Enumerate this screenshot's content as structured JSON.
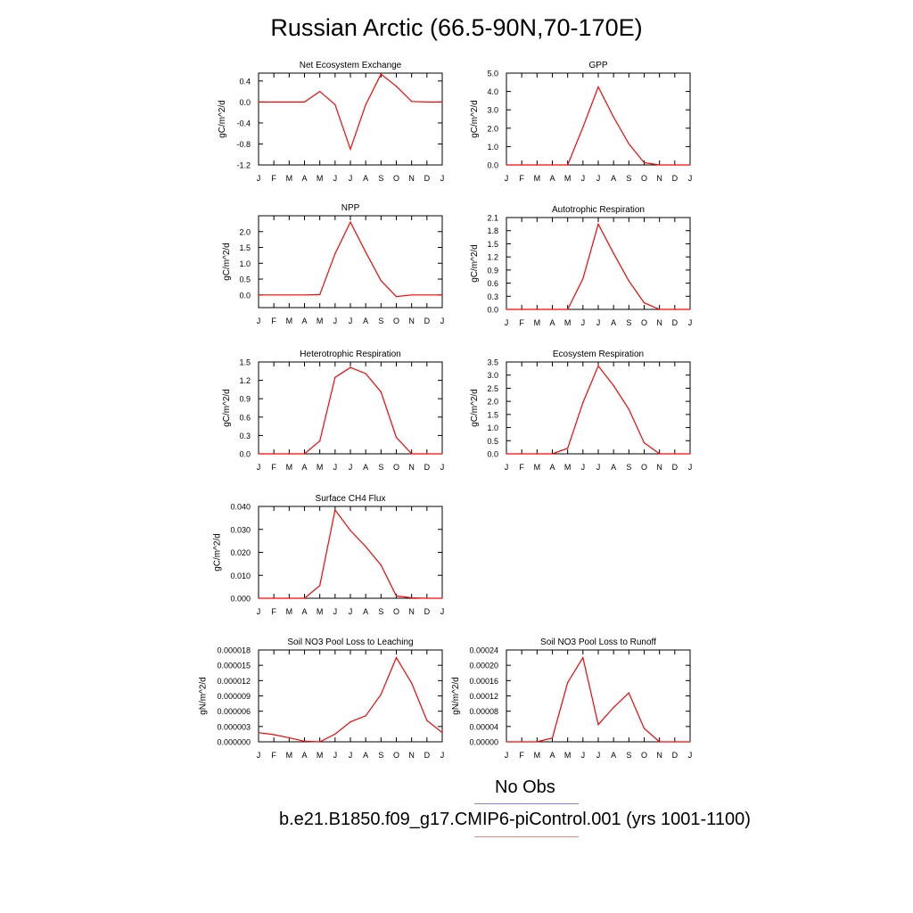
{
  "page_title": "Russian Arctic (66.5-90N,70-170E)",
  "months": [
    "J",
    "F",
    "M",
    "A",
    "M",
    "J",
    "J",
    "A",
    "S",
    "O",
    "N",
    "D",
    "J"
  ],
  "series_color": "#ff0000",
  "legend": {
    "obs_label": "No Obs",
    "obs_color": "#8080ff",
    "model_label": "b.e21.B1850.f09_g17.CMIP6-piControl.001 (yrs 1001-1100)",
    "model_color": "#ff8080"
  },
  "chart_data": [
    {
      "type": "line",
      "title": "Net Ecosystem Exchange",
      "ylabel": "gC/m^2/d",
      "ylim": [
        -1.2,
        0.55
      ],
      "yticks": [
        "0.4",
        "0.0",
        "-0.4",
        "-0.8",
        "-1.2"
      ],
      "ytick_values": [
        0.4,
        0.0,
        -0.4,
        -0.8,
        -1.2
      ],
      "values": [
        0.0,
        0.0,
        0.0,
        0.0,
        0.2,
        -0.05,
        -0.9,
        -0.05,
        0.53,
        0.3,
        0.01,
        0.0,
        0.0
      ]
    },
    {
      "type": "line",
      "title": "GPP",
      "ylabel": "gC/m^2/d",
      "ylim": [
        0,
        5
      ],
      "yticks": [
        "5.0",
        "4.0",
        "3.0",
        "2.0",
        "1.0",
        "0.0"
      ],
      "ytick_values": [
        5,
        4,
        3,
        2,
        1,
        0
      ],
      "values": [
        0,
        0,
        0,
        0,
        0,
        2.05,
        4.25,
        2.6,
        1.15,
        0.12,
        0,
        0,
        0
      ]
    },
    {
      "type": "line",
      "title": "NPP",
      "ylabel": "gC/m^2/d",
      "ylim": [
        -0.4,
        2.5
      ],
      "yticks": [
        "2.0",
        "1.5",
        "1.0",
        "0.5",
        "0.0"
      ],
      "ytick_values": [
        2.0,
        1.5,
        1.0,
        0.5,
        0.0
      ],
      "values": [
        0,
        0,
        0,
        0,
        0.01,
        1.3,
        2.3,
        1.35,
        0.45,
        -0.05,
        0,
        0,
        0
      ]
    },
    {
      "type": "line",
      "title": "Autotrophic Respiration",
      "ylabel": "gC/m^2/d",
      "ylim": [
        0,
        2.1
      ],
      "yticks": [
        "2.1",
        "1.8",
        "1.5",
        "1.2",
        "0.9",
        "0.6",
        "0.3",
        "0.0"
      ],
      "ytick_values": [
        2.1,
        1.8,
        1.5,
        1.2,
        0.9,
        0.6,
        0.3,
        0.0
      ],
      "values": [
        0,
        0,
        0,
        0,
        0,
        0.7,
        1.95,
        1.28,
        0.65,
        0.15,
        0,
        0,
        0
      ]
    },
    {
      "type": "line",
      "title": "Heterotrophic Respiration",
      "ylabel": "gC/m^2/d",
      "ylim": [
        0,
        1.5
      ],
      "yticks": [
        "1.5",
        "1.2",
        "0.9",
        "0.6",
        "0.3",
        "0.0"
      ],
      "ytick_values": [
        1.5,
        1.2,
        0.9,
        0.6,
        0.3,
        0.0
      ],
      "values": [
        0,
        0,
        0,
        0,
        0.21,
        1.25,
        1.41,
        1.31,
        1.01,
        0.27,
        0,
        0,
        0
      ]
    },
    {
      "type": "line",
      "title": "Ecosystem Respiration",
      "ylabel": "gC/m^2/d",
      "ylim": [
        0,
        3.5
      ],
      "yticks": [
        "3.5",
        "3.0",
        "2.5",
        "2.0",
        "1.5",
        "1.0",
        "0.5",
        "0.0"
      ],
      "ytick_values": [
        3.5,
        3.0,
        2.5,
        2.0,
        1.5,
        1.0,
        0.5,
        0.0
      ],
      "values": [
        0,
        0,
        0,
        0,
        0.21,
        1.95,
        3.35,
        2.6,
        1.7,
        0.42,
        0,
        0,
        0
      ]
    },
    {
      "type": "line",
      "title": "Surface CH4 Flux",
      "ylabel": "gC/m^2/d",
      "ylim": [
        0,
        0.04
      ],
      "yticks": [
        "0.040",
        "0.030",
        "0.020",
        "0.010",
        "0.000"
      ],
      "ytick_values": [
        0.04,
        0.03,
        0.02,
        0.01,
        0.0
      ],
      "values": [
        0,
        0,
        0,
        0,
        0.0055,
        0.0385,
        0.0295,
        0.0225,
        0.0145,
        0.001,
        0.0002,
        0,
        0
      ]
    },
    {
      "type": "line",
      "title": "Soil NO3 Pool Loss to Leaching",
      "ylabel": "gN/m^2/d",
      "ylim": [
        0,
        1.8e-05
      ],
      "yticks": [
        "0.000018",
        "0.000015",
        "0.000012",
        "0.000009",
        "0.000006",
        "0.000003",
        "0.000000"
      ],
      "ytick_values": [
        1.8e-05,
        1.5e-05,
        1.2e-05,
        9e-06,
        6e-06,
        3e-06,
        0.0
      ],
      "values": [
        1.8e-06,
        1.4e-06,
        8e-07,
        1e-07,
        0.0,
        1.5e-06,
        3.9e-06,
        5.1e-06,
        9.3e-06,
        1.65e-05,
        1.15e-05,
        4.2e-06,
        1.8e-06
      ]
    },
    {
      "type": "line",
      "title": "Soil NO3 Pool Loss to Runoff",
      "ylabel": "gN/m^2/d",
      "ylim": [
        0,
        0.00024
      ],
      "yticks": [
        "0.00024",
        "0.00020",
        "0.00016",
        "0.00012",
        "0.00008",
        "0.00004",
        "0.00000"
      ],
      "ytick_values": [
        0.00024,
        0.0002,
        0.00016,
        0.00012,
        8e-05,
        4e-05,
        0.0
      ],
      "values": [
        0,
        0,
        0,
        1e-05,
        0.000155,
        0.00022,
        4.5e-05,
        9e-05,
        0.000128,
        3.5e-05,
        0,
        0,
        0
      ]
    }
  ]
}
